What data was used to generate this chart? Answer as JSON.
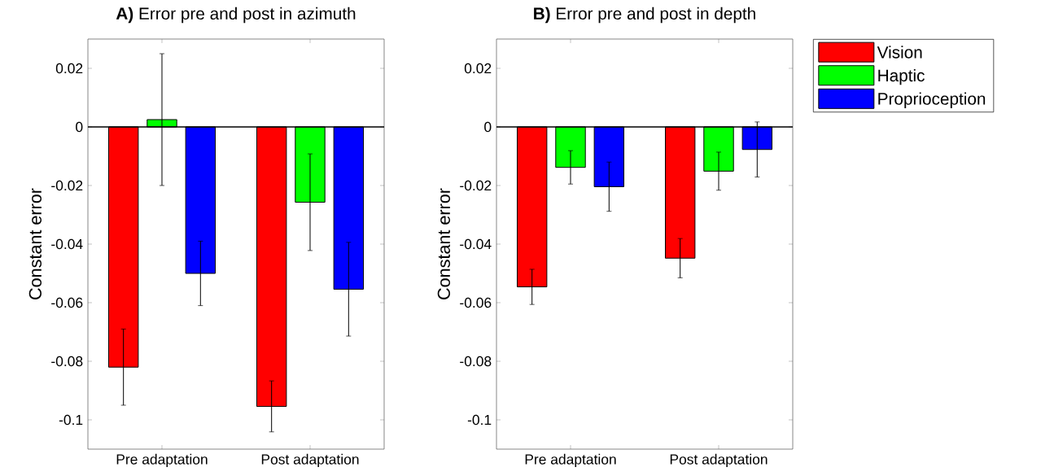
{
  "chart_data": [
    {
      "type": "bar",
      "title": "**A)**  Error pre and post in azimuth",
      "ylabel": "Constant error",
      "categories": [
        "Pre adaptation",
        "Post adaptation"
      ],
      "series": [
        {
          "color": "#ff0000",
          "values": [
            -0.082,
            -0.0954
          ],
          "errors": [
            0.013,
            0.0087
          ]
        },
        {
          "color": "#00ff00",
          "values": [
            0.0025,
            -0.0257
          ],
          "errors": [
            0.0225,
            0.0165
          ]
        },
        {
          "color": "#0000ff",
          "values": [
            -0.05,
            -0.0554
          ],
          "errors": [
            0.011,
            0.016
          ]
        }
      ],
      "ylim": [
        -0.11,
        0.03
      ],
      "yticks": [
        -0.1,
        -0.08,
        -0.06,
        -0.04,
        -0.02,
        0,
        0.02
      ],
      "grid": false,
      "legend": false,
      "ref_lines": [
        {
          "axis": "y",
          "value": 0
        }
      ]
    },
    {
      "type": "bar",
      "title": "**B)**  Error pre and post in depth",
      "ylabel": "Constant error",
      "categories": [
        "Pre adaptation",
        "Post adaptation"
      ],
      "series": [
        {
          "name": "Vision",
          "color": "#ff0000",
          "values": [
            -0.0546,
            -0.0448
          ],
          "errors": [
            0.006,
            0.0067
          ]
        },
        {
          "name": "Haptic",
          "color": "#00ff00",
          "values": [
            -0.0138,
            -0.0151
          ],
          "errors": [
            0.0057,
            0.0065
          ]
        },
        {
          "name": "Proprioception",
          "color": "#0000ff",
          "values": [
            -0.0204,
            -0.0077
          ],
          "errors": [
            0.0084,
            0.0094
          ]
        }
      ],
      "ylim": [
        -0.11,
        0.03
      ],
      "yticks": [
        -0.1,
        -0.08,
        -0.06,
        -0.04,
        -0.02,
        0,
        0.02
      ],
      "grid": false,
      "legend": "right",
      "ref_lines": [
        {
          "axis": "y",
          "value": 0
        }
      ]
    }
  ]
}
